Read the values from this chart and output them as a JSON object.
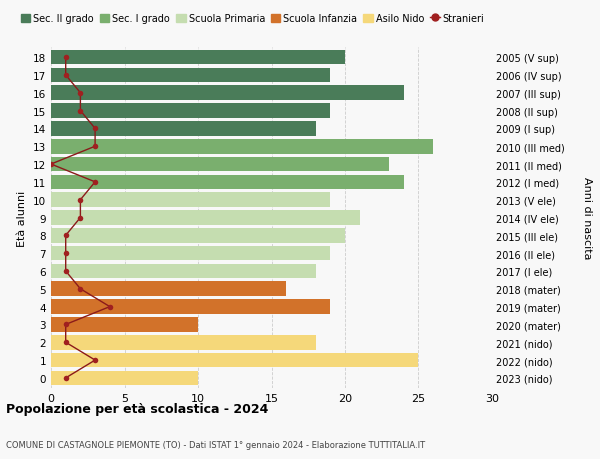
{
  "ages": [
    18,
    17,
    16,
    15,
    14,
    13,
    12,
    11,
    10,
    9,
    8,
    7,
    6,
    5,
    4,
    3,
    2,
    1,
    0
  ],
  "right_labels": [
    "2005 (V sup)",
    "2006 (IV sup)",
    "2007 (III sup)",
    "2008 (II sup)",
    "2009 (I sup)",
    "2010 (III med)",
    "2011 (II med)",
    "2012 (I med)",
    "2013 (V ele)",
    "2014 (IV ele)",
    "2015 (III ele)",
    "2016 (II ele)",
    "2017 (I ele)",
    "2018 (mater)",
    "2019 (mater)",
    "2020 (mater)",
    "2021 (nido)",
    "2022 (nido)",
    "2023 (nido)"
  ],
  "bar_values": [
    20,
    19,
    24,
    19,
    18,
    26,
    23,
    24,
    19,
    21,
    20,
    19,
    18,
    16,
    19,
    10,
    18,
    25,
    10
  ],
  "bar_colors": [
    "#4a7c59",
    "#4a7c59",
    "#4a7c59",
    "#4a7c59",
    "#4a7c59",
    "#7aaf6e",
    "#7aaf6e",
    "#7aaf6e",
    "#c5ddb0",
    "#c5ddb0",
    "#c5ddb0",
    "#c5ddb0",
    "#c5ddb0",
    "#d2722a",
    "#d2722a",
    "#d2722a",
    "#f5d87a",
    "#f5d87a",
    "#f5d87a"
  ],
  "stranieri_values": [
    1,
    1,
    2,
    2,
    3,
    3,
    0,
    3,
    2,
    2,
    1,
    1,
    1,
    2,
    4,
    1,
    1,
    3,
    1
  ],
  "title_bold": "Popolazione per età scolastica - 2024",
  "subtitle": "COMUNE DI CASTAGNOLE PIEMONTE (TO) - Dati ISTAT 1° gennaio 2024 - Elaborazione TUTTITALIA.IT",
  "ylabel": "Età alunni",
  "right_ylabel": "Anni di nascita",
  "xlim": [
    0,
    30
  ],
  "xticks": [
    0,
    5,
    10,
    15,
    20,
    25,
    30
  ],
  "legend_labels": [
    "Sec. II grado",
    "Sec. I grado",
    "Scuola Primaria",
    "Scuola Infanzia",
    "Asilo Nido",
    "Stranieri"
  ],
  "legend_colors": [
    "#4a7c59",
    "#7aaf6e",
    "#c5ddb0",
    "#d2722a",
    "#f5d87a",
    "#a02020"
  ],
  "bg_color": "#f8f8f8",
  "bar_height": 0.82
}
